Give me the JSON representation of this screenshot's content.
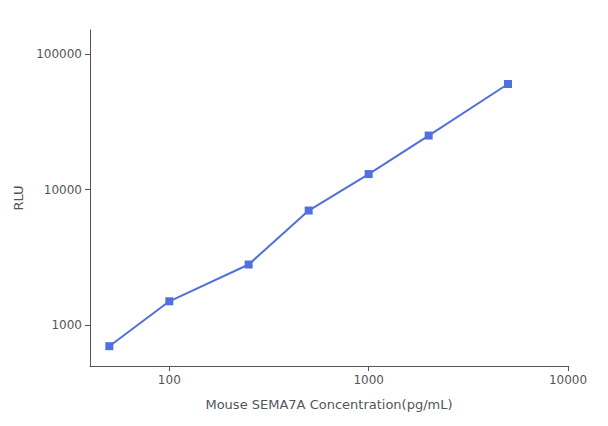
{
  "chart_data": {
    "type": "line",
    "xlabel": "Mouse SEMA7A Concentration(pg/mL)",
    "ylabel": "RLU",
    "x": [
      50,
      100,
      250,
      500,
      1000,
      2000,
      5000
    ],
    "values": [
      700,
      1500,
      2800,
      7000,
      13000,
      25000,
      60000
    ],
    "xlim": [
      40,
      10000
    ],
    "ylim": [
      500,
      150000
    ],
    "xticks": [
      100,
      1000,
      10000
    ],
    "yticks": [
      1000,
      10000,
      100000
    ],
    "log": true,
    "marker": "square",
    "grid": false
  }
}
